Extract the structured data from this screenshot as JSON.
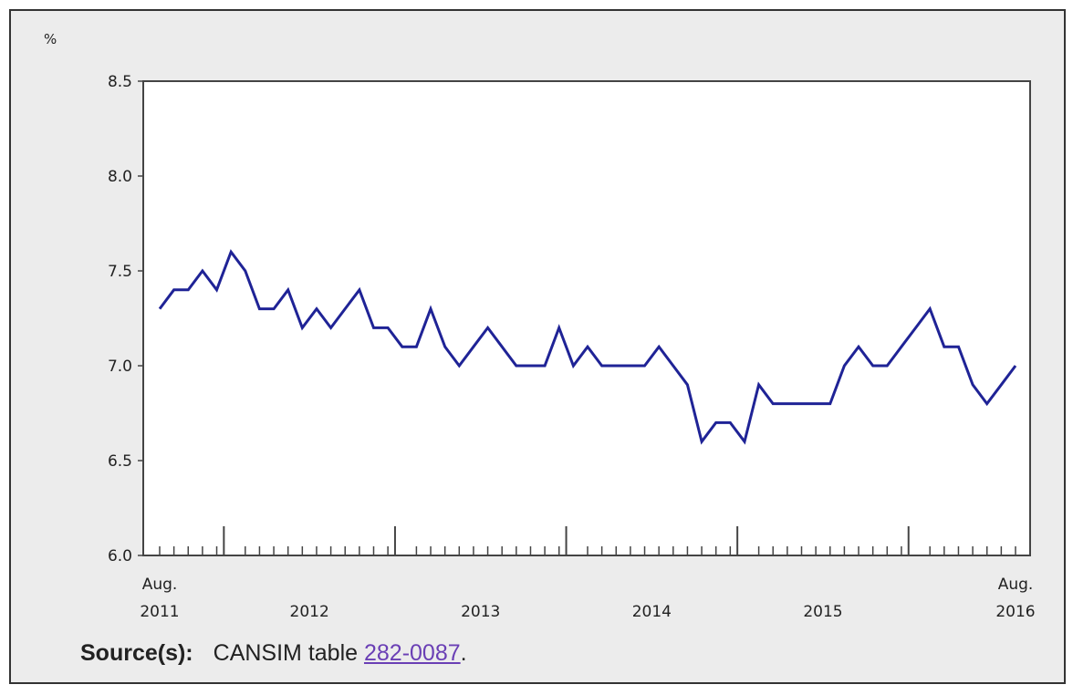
{
  "chart_data": {
    "type": "line",
    "ylabel": "%",
    "ylim": [
      6.0,
      8.5
    ],
    "yticks": [
      "6.0",
      "6.5",
      "7.0",
      "7.5",
      "8.0",
      "8.5"
    ],
    "x_start_label": [
      "Aug.",
      "2011"
    ],
    "x_end_label": [
      "Aug.",
      "2016"
    ],
    "year_labels": [
      "2012",
      "2013",
      "2014",
      "2015"
    ],
    "grid": false,
    "line_color": "#1f2396",
    "x": [
      "2011-08",
      "2011-09",
      "2011-10",
      "2011-11",
      "2011-12",
      "2012-01",
      "2012-02",
      "2012-03",
      "2012-04",
      "2012-05",
      "2012-06",
      "2012-07",
      "2012-08",
      "2012-09",
      "2012-10",
      "2012-11",
      "2012-12",
      "2013-01",
      "2013-02",
      "2013-03",
      "2013-04",
      "2013-05",
      "2013-06",
      "2013-07",
      "2013-08",
      "2013-09",
      "2013-10",
      "2013-11",
      "2013-12",
      "2014-01",
      "2014-02",
      "2014-03",
      "2014-04",
      "2014-05",
      "2014-06",
      "2014-07",
      "2014-08",
      "2014-09",
      "2014-10",
      "2014-11",
      "2014-12",
      "2015-01",
      "2015-02",
      "2015-03",
      "2015-04",
      "2015-05",
      "2015-06",
      "2015-07",
      "2015-08",
      "2015-09",
      "2015-10",
      "2015-11",
      "2015-12",
      "2016-01",
      "2016-02",
      "2016-03",
      "2016-04",
      "2016-05",
      "2016-06",
      "2016-07",
      "2016-08"
    ],
    "series": [
      {
        "values": [
          7.3,
          7.4,
          7.4,
          7.5,
          7.4,
          7.6,
          7.5,
          7.3,
          7.3,
          7.4,
          7.2,
          7.3,
          7.2,
          7.3,
          7.4,
          7.2,
          7.2,
          7.1,
          7.1,
          7.3,
          7.1,
          7.0,
          7.1,
          7.2,
          7.1,
          7.0,
          7.0,
          7.0,
          7.2,
          7.0,
          7.1,
          7.0,
          7.0,
          7.0,
          7.0,
          7.1,
          7.0,
          6.9,
          6.6,
          6.7,
          6.7,
          6.6,
          6.9,
          6.8,
          6.8,
          6.8,
          6.8,
          6.8,
          7.0,
          7.1,
          7.0,
          7.0,
          7.1,
          7.2,
          7.3,
          7.1,
          7.1,
          6.9,
          6.8,
          6.9,
          7.0
        ]
      }
    ]
  },
  "source": {
    "label": "Source(s):",
    "text": "CANSIM table ",
    "link": "282-0087",
    "suffix": "."
  }
}
